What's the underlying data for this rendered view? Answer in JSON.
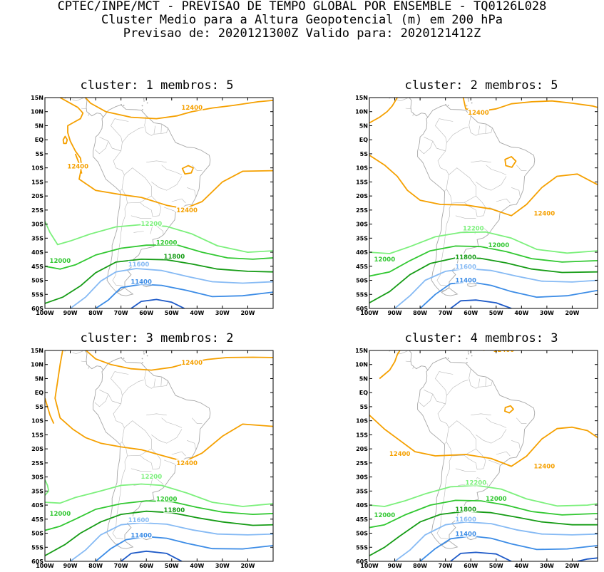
{
  "header": {
    "line1": "CPTEC/INPE/MCT - PREVISAO DE TEMPO GLOBAL POR ENSEMBLE - TQ0126L028",
    "line2": "Cluster Medio para a Altura Geopotencial (m) em 200 hPa",
    "line3": "Previsao de: 2020121300Z   Valido para: 2020121412Z"
  },
  "axes": {
    "lat_labels": [
      "15N",
      "10N",
      "5N",
      "EQ",
      "5S",
      "10S",
      "15S",
      "20S",
      "25S",
      "30S",
      "35S",
      "40S",
      "45S",
      "50S",
      "55S",
      "60S"
    ],
    "lon_labels": [
      "100W",
      "90W",
      "80W",
      "70W",
      "60W",
      "50W",
      "40W",
      "30W",
      "20W"
    ],
    "lat_range": [
      -60,
      15
    ],
    "lon_range": [
      -100,
      -10
    ]
  },
  "colors": {
    "c12400": "#f5a000",
    "c12200": "#7cf07c",
    "c12000": "#32c832",
    "c11800": "#169c16",
    "c11600": "#86baf4",
    "c11400": "#3c8ce6",
    "c11200": "#1e5ac8",
    "coast": "#a8a8a8"
  },
  "contour_labels": {
    "l12400": "12400",
    "l12200": "12200",
    "l12000": "12000",
    "l11800": "11800",
    "l11600": "11600",
    "l11400": "11400"
  },
  "panels": [
    {
      "title": "cluster: 1   membros: 5"
    },
    {
      "title": "cluster: 2   membros: 5"
    },
    {
      "title": "cluster: 3   membros: 2"
    },
    {
      "title": "cluster: 4   membros: 3"
    }
  ]
}
